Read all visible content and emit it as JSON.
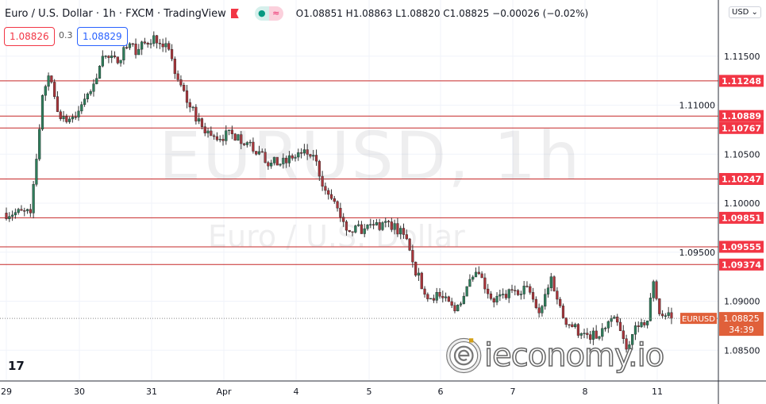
{
  "header": {
    "title": "Euro / U.S. Dollar · 1h · FXCM · TradingView",
    "ohlc": {
      "open": "O1.08851",
      "high": "H1.08863",
      "low": "L1.08820",
      "close": "C1.08825",
      "change": "−0.00026 (−0.02%)"
    },
    "bid": "1.08826",
    "spread": "0.3",
    "ask": "1.08829"
  },
  "currency_selector": "USD",
  "watermark": {
    "symbol": "EURUSD, 1h",
    "description": "Euro / U.S. Dollar"
  },
  "logo": {
    "text": "ieconomy.io"
  },
  "countdown": "34:39",
  "symbol_label": "EURUSD",
  "colors": {
    "up": "#2e7d5b",
    "down": "#a8343a",
    "level_line": "#c62828",
    "level_label": "#f23645",
    "last_price": "#e0603a"
  },
  "chart_data": {
    "type": "candlestick",
    "symbol": "EURUSD",
    "interval": "1h",
    "ylim": [
      1.083,
      1.1205
    ],
    "y_ticks": [
      "1.08500",
      "1.09000",
      "1.09500",
      "1.10000",
      "1.10500",
      "1.11000",
      "1.11500"
    ],
    "x_ticks": [
      "29",
      "30",
      "31",
      "Apr",
      "4",
      "5",
      "6",
      "7",
      "8",
      "11"
    ],
    "grid": true,
    "last_price": "1.08825",
    "horizontal_levels": [
      "1.11248",
      "1.10889",
      "1.10767",
      "1.10247",
      "1.09851",
      "1.09555",
      "1.09374"
    ],
    "close_path": [
      [
        "Mar 29 00:00",
        1.099
      ],
      [
        "Mar 29 08:00",
        1.099
      ],
      [
        "Mar 29 10:00",
        1.1045
      ],
      [
        "Mar 29 12:00",
        1.111
      ],
      [
        "Mar 29 14:00",
        1.113
      ],
      [
        "Mar 29 18:00",
        1.1086
      ],
      [
        "Mar 29 22:00",
        1.1088
      ],
      [
        "Mar 30 00:00",
        1.1094
      ],
      [
        "Mar 30 04:00",
        1.1114
      ],
      [
        "Mar 30 08:00",
        1.115
      ],
      [
        "Mar 30 13:00",
        1.1143
      ],
      [
        "Mar 30 15:00",
        1.1159
      ],
      [
        "Mar 30 20:00",
        1.1157
      ],
      [
        "Mar 31 01:00",
        1.1171
      ],
      [
        "Mar 31 05:00",
        1.1163
      ],
      [
        "Mar 31 09:00",
        1.1126
      ],
      [
        "Mar 31 13:00",
        1.1098
      ],
      [
        "Mar 31 17:00",
        1.1078
      ],
      [
        "Mar 31 21:00",
        1.1068
      ],
      [
        "Apr 1 05:00",
        1.107
      ],
      [
        "Apr 1 10:00",
        1.1053
      ],
      [
        "Apr 1 16:00",
        1.1041
      ],
      [
        "Apr 1 21:00",
        1.1041
      ],
      [
        "Apr 4 02:00",
        1.1051
      ],
      [
        "Apr 4 06:00",
        1.1049
      ],
      [
        "Apr 4 10:00",
        1.1013
      ],
      [
        "Apr 4 14:00",
        1.0995
      ],
      [
        "Apr 4 18:00",
        1.0971
      ],
      [
        "Apr 4 23:00",
        1.0974
      ],
      [
        "Apr 5 07:00",
        1.0981
      ],
      [
        "Apr 5 12:00",
        1.0968
      ],
      [
        "Apr 5 15:00",
        1.094
      ],
      [
        "Apr 5 19:00",
        1.0907
      ],
      [
        "Apr 6 00:00",
        1.0905
      ],
      [
        "Apr 6 05:00",
        1.089
      ],
      [
        "Apr 6 09:00",
        1.0915
      ],
      [
        "Apr 6 13:00",
        1.0928
      ],
      [
        "Apr 6 18:00",
        1.0899
      ],
      [
        "Apr 7 01:00",
        1.0911
      ],
      [
        "Apr 7 05:00",
        1.0915
      ],
      [
        "Apr 7 09:00",
        1.0888
      ],
      [
        "Apr 7 13:00",
        1.0925
      ],
      [
        "Apr 7 17:00",
        1.0883
      ],
      [
        "Apr 7 23:00",
        1.0867
      ],
      [
        "Apr 8 05:00",
        1.0864
      ],
      [
        "Apr 8 10:00",
        1.0884
      ],
      [
        "Apr 8 14:00",
        1.0851
      ],
      [
        "Apr 8 17:00",
        1.0875
      ],
      [
        "Apr 8 21:00",
        1.088
      ],
      [
        "Apr 8 23:00",
        1.092
      ],
      [
        "Apr 11 01:00",
        1.0887
      ],
      [
        "Apr 11 05:00",
        1.08825
      ]
    ]
  }
}
